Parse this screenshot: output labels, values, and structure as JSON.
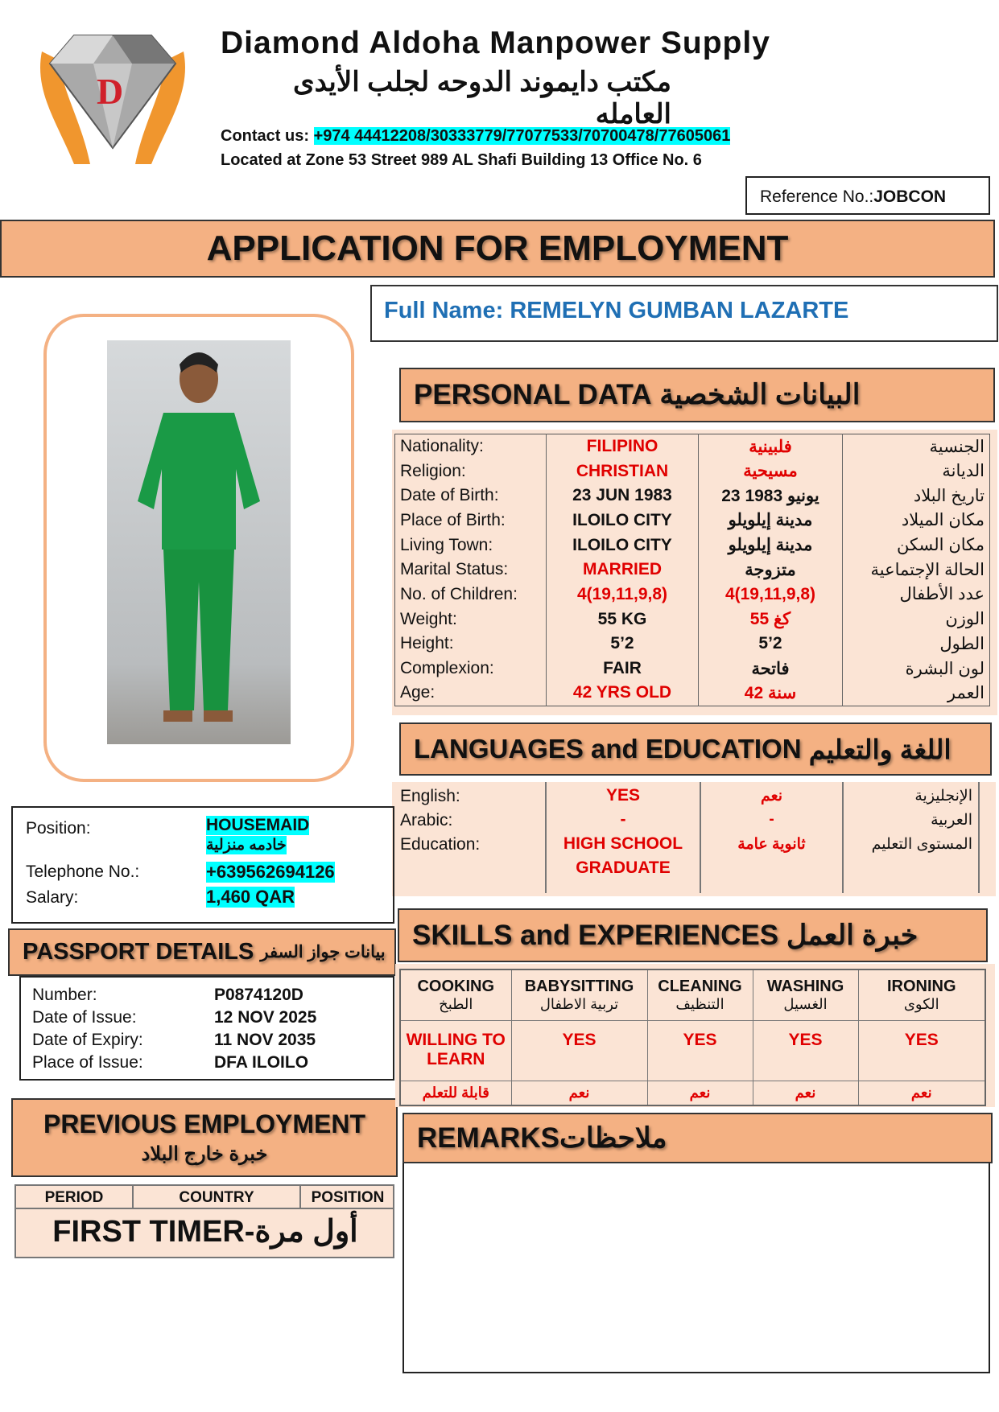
{
  "company": {
    "name_en": "Diamond Aldoha Manpower Supply",
    "name_ar": "مكتب دايموند الدوحه لجلب الأيدى العامله",
    "contact_label": "Contact us:",
    "contact_numbers": "+974 44412208/30333779/77077533/70700478/77605061",
    "address": "Located at Zone 53 Street 989 AL Shafi Building 13 Office No. 6",
    "logo_letters": "DD"
  },
  "reference": {
    "label": "Reference No.:",
    "value": "JOBCON"
  },
  "title": "APPLICATION FOR EMPLOYMENT",
  "full_name": {
    "label": "Full Name:",
    "value": "REMELYN GUMBAN LAZARTE"
  },
  "colors": {
    "header": "#f4b183",
    "panel": "#fbe4d5",
    "highlight": "#00ffff",
    "red": "#e00000",
    "name_blue": "#1f6fb4"
  },
  "personal": {
    "title_en": "PERSONAL DATA",
    "title_ar": "البيانات الشخصية",
    "rows": [
      {
        "label": "Nationality:",
        "value": "FILIPINO",
        "value_ar": "فلبينية",
        "label_ar": "الجنسية",
        "red": true
      },
      {
        "label": "Religion:",
        "value": "CHRISTIAN",
        "value_ar": "مسيحية",
        "label_ar": "الديانة",
        "red": true
      },
      {
        "label": "Date of Birth:",
        "value": "23 JUN 1983",
        "value_ar": "23 1983 يونيو",
        "label_ar": "تاريخ البلاد",
        "red": false
      },
      {
        "label": "Place of Birth:",
        "value": "ILOILO CITY",
        "value_ar": "مدينة إيلويلو",
        "label_ar": "مكان الميلاد",
        "red": false
      },
      {
        "label": "Living Town:",
        "value": "ILOILO CITY",
        "value_ar": "مدينة إيلويلو",
        "label_ar": "مكان السكن",
        "red": false
      },
      {
        "label": "Marital Status:",
        "value": "MARRIED",
        "value_ar": "متزوجة",
        "label_ar": "الحالة الإجتماعية",
        "red": true,
        "ar_black": true
      },
      {
        "label": "No. of Children:",
        "value": "4(19,11,9,8)",
        "value_ar": "4(19,11,9,8)",
        "label_ar": "عدد الأطفال",
        "red": true
      },
      {
        "label": "Weight:",
        "value": "55 KG",
        "value_ar": "55 كغ",
        "label_ar": "الوزن",
        "red": false,
        "ar_red": true
      },
      {
        "label": "Height:",
        "value": "5’2",
        "value_ar": "5’2",
        "label_ar": "الطول",
        "red": false
      },
      {
        "label": "Complexion:",
        "value": "FAIR",
        "value_ar": "فاتحة",
        "label_ar": "لون البشرة",
        "red": false
      },
      {
        "label": "Age:",
        "value": "42 YRS OLD",
        "value_ar": "42 سنة",
        "label_ar": "العمر",
        "red": true
      }
    ]
  },
  "languages": {
    "title_en": "LANGUAGES and EDUCATION",
    "title_ar": "اللغة والتعليم",
    "rows": [
      {
        "label": "English:",
        "value": "YES",
        "value_ar": "نعم",
        "label_ar": "الإنجليزية"
      },
      {
        "label": "Arabic:",
        "value": "-",
        "value_ar": "-",
        "label_ar": "العربية"
      },
      {
        "label": "Education:",
        "value": "HIGH SCHOOL GRADUATE",
        "value_ar": "ثانوية عامة",
        "label_ar": "المستوى التعليم"
      }
    ]
  },
  "job": {
    "rows": [
      {
        "label": "Position:",
        "value": "HOUSEMAID",
        "value_ar": "خادمه منزلية"
      },
      {
        "label": "Telephone No.:",
        "value": "+639562694126"
      },
      {
        "label": "Salary:",
        "value": "1,460 QAR"
      }
    ]
  },
  "passport": {
    "title_en": "PASSPORT DETAILS",
    "title_ar": "بيانات جواز السفر",
    "rows": [
      {
        "label": "Number:",
        "value": "P0874120D"
      },
      {
        "label": "Date of Issue:",
        "value": "12 NOV 2025"
      },
      {
        "label": "Date of Expiry:",
        "value": "11 NOV 2035"
      },
      {
        "label": "Place of Issue:",
        "value": "DFA ILOILO"
      }
    ]
  },
  "previous": {
    "title_en": "PREVIOUS EMPLOYMENT",
    "title_ar": "خبرة خارج البلاد",
    "columns": [
      "PERIOD",
      "COUNTRY",
      "POSITION"
    ],
    "value": "FIRST TIMER-أول مرة"
  },
  "skills": {
    "title_en": "SKILLS and EXPERIENCES",
    "title_ar": "خبرة العمل",
    "items": [
      {
        "name": "COOKING",
        "name_ar": "الطبخ",
        "value": "WILLING TO LEARN",
        "value_ar": "قابلة للتعلم"
      },
      {
        "name": "BABYSITTING",
        "name_ar": "تربية الاطفال",
        "value": "YES",
        "value_ar": "نعم"
      },
      {
        "name": "CLEANING",
        "name_ar": "التنظيف",
        "value": "YES",
        "value_ar": "نعم"
      },
      {
        "name": "WASHING",
        "name_ar": "الغسيل",
        "value": "YES",
        "value_ar": "نعم"
      },
      {
        "name": "IRONING",
        "name_ar": "الكوى",
        "value": "YES",
        "value_ar": "نعم"
      }
    ]
  },
  "remarks": {
    "title": "REMARKSملاحظات",
    "content": ""
  }
}
